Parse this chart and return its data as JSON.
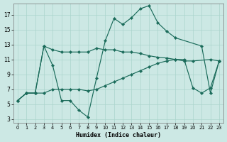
{
  "xlabel": "Humidex (Indice chaleur)",
  "bg_color": "#cce8e4",
  "grid_color": "#aad4cc",
  "line_color": "#1a6b5a",
  "xlim": [
    -0.5,
    23.5
  ],
  "ylim": [
    2.5,
    18.5
  ],
  "xticks": [
    0,
    1,
    2,
    3,
    4,
    5,
    6,
    7,
    8,
    9,
    10,
    11,
    12,
    13,
    14,
    15,
    16,
    17,
    18,
    19,
    20,
    21,
    22,
    23
  ],
  "yticks": [
    3,
    5,
    7,
    9,
    11,
    13,
    15,
    17
  ],
  "line1_x": [
    0,
    1,
    2,
    3,
    4,
    5,
    6,
    7,
    8,
    9,
    10,
    11,
    12,
    13,
    14,
    15,
    16,
    17,
    18,
    21,
    22,
    23
  ],
  "line1_y": [
    5.5,
    6.5,
    6.5,
    12.8,
    10.2,
    5.5,
    5.5,
    4.2,
    3.3,
    8.5,
    13.5,
    16.5,
    15.7,
    16.6,
    17.8,
    18.2,
    15.9,
    14.8,
    13.9,
    12.8,
    6.5,
    10.8
  ],
  "line2_x": [
    0,
    1,
    2,
    3,
    4,
    5,
    6,
    7,
    8,
    9,
    10,
    11,
    12,
    13,
    14,
    15,
    16,
    17,
    18,
    19,
    20,
    22,
    23
  ],
  "line2_y": [
    5.5,
    6.5,
    6.5,
    12.8,
    12.3,
    12.0,
    12.0,
    12.0,
    12.0,
    12.5,
    12.3,
    12.3,
    12.0,
    12.0,
    11.8,
    11.5,
    11.3,
    11.2,
    11.0,
    10.8,
    10.8,
    11.0,
    10.8
  ],
  "line3_x": [
    0,
    1,
    2,
    3,
    4,
    5,
    6,
    7,
    8,
    9,
    10,
    11,
    12,
    13,
    14,
    15,
    16,
    17,
    18,
    19,
    20,
    21,
    22,
    23
  ],
  "line3_y": [
    5.5,
    6.5,
    6.5,
    6.5,
    7.0,
    7.0,
    7.0,
    7.0,
    6.8,
    7.0,
    7.5,
    8.0,
    8.5,
    9.0,
    9.5,
    10.0,
    10.5,
    10.8,
    11.0,
    11.0,
    7.2,
    6.5,
    7.2,
    10.8
  ]
}
